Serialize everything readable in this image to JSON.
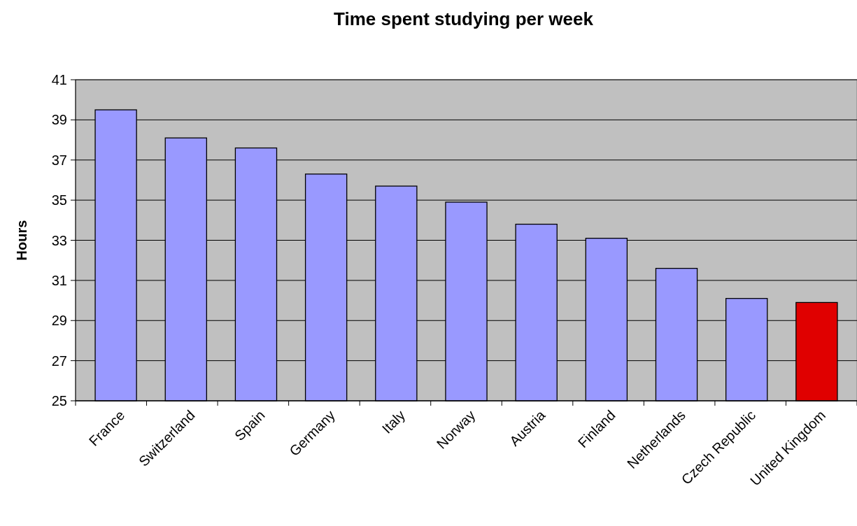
{
  "chart_data": {
    "type": "bar",
    "title": "Time spent studying per week",
    "ylabel": "Hours",
    "categories": [
      "France",
      "Switzerland",
      "Spain",
      "Germany",
      "Italy",
      "Norway",
      "Austria",
      "Finland",
      "Netherlands",
      "Czech Republic",
      "United Kingdom"
    ],
    "values": [
      39.5,
      38.1,
      37.6,
      36.3,
      35.7,
      34.9,
      33.8,
      33.1,
      31.6,
      30.1,
      29.9
    ],
    "colors": [
      "#9999ff",
      "#9999ff",
      "#9999ff",
      "#9999ff",
      "#9999ff",
      "#9999ff",
      "#9999ff",
      "#9999ff",
      "#9999ff",
      "#9999ff",
      "#e00000"
    ],
    "ylim": [
      25,
      41
    ],
    "yticks": [
      25,
      27,
      29,
      31,
      33,
      35,
      37,
      39,
      41
    ],
    "grid": "y"
  }
}
